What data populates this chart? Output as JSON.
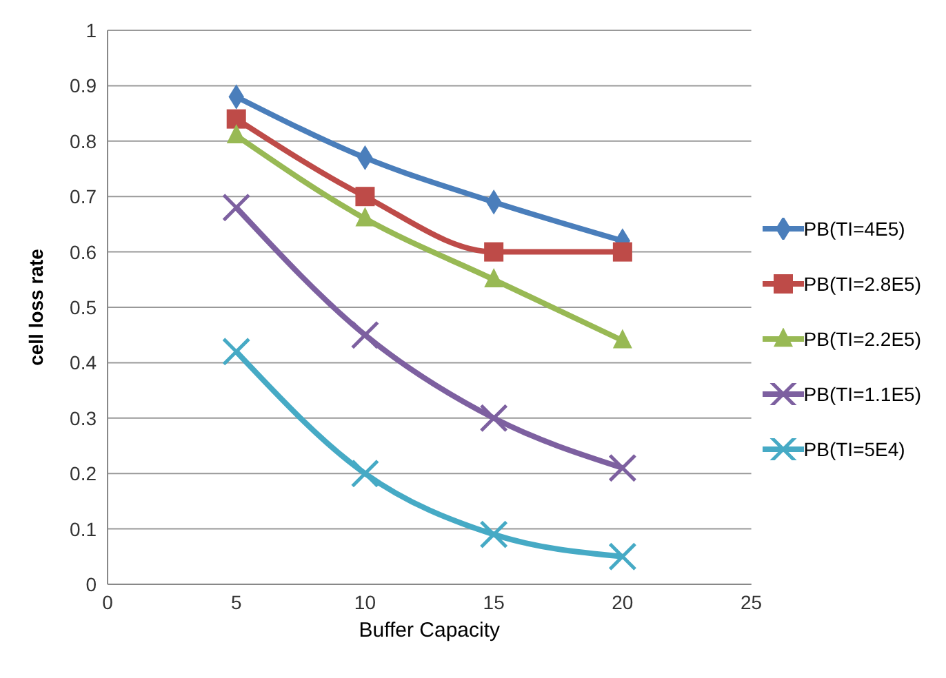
{
  "chart_data": {
    "type": "line",
    "xlabel": "Buffer Capacity",
    "ylabel": "cell loss rate",
    "x": [
      5,
      10,
      15,
      20
    ],
    "series": [
      {
        "name": "PB(TI=4E5)",
        "color": "#4a7ebb",
        "marker": "diamond",
        "values": [
          0.88,
          0.77,
          0.69,
          0.62
        ]
      },
      {
        "name": "PB(TI=2.8E5)",
        "color": "#be4b48",
        "marker": "square",
        "values": [
          0.84,
          0.7,
          0.6,
          0.6
        ]
      },
      {
        "name": "PB(TI=2.2E5)",
        "color": "#98b954",
        "marker": "triangle",
        "values": [
          0.81,
          0.66,
          0.55,
          0.44
        ]
      },
      {
        "name": "PB(TI=1.1E5)",
        "color": "#7d60a0",
        "marker": "cross",
        "values": [
          0.68,
          0.45,
          0.3,
          0.21
        ]
      },
      {
        "name": "PB(TI=5E4)",
        "color": "#46aac5",
        "marker": "cross",
        "values": [
          0.42,
          0.2,
          0.09,
          0.05
        ]
      }
    ],
    "xlim": [
      0,
      25
    ],
    "xticks": [
      0,
      5,
      10,
      15,
      20,
      25
    ],
    "ylim": [
      0,
      1
    ],
    "yticks": [
      0,
      0.1,
      0.2,
      0.3,
      0.4,
      0.5,
      0.6,
      0.7,
      0.8,
      0.9,
      1
    ],
    "grid": "y",
    "legend": "right"
  }
}
